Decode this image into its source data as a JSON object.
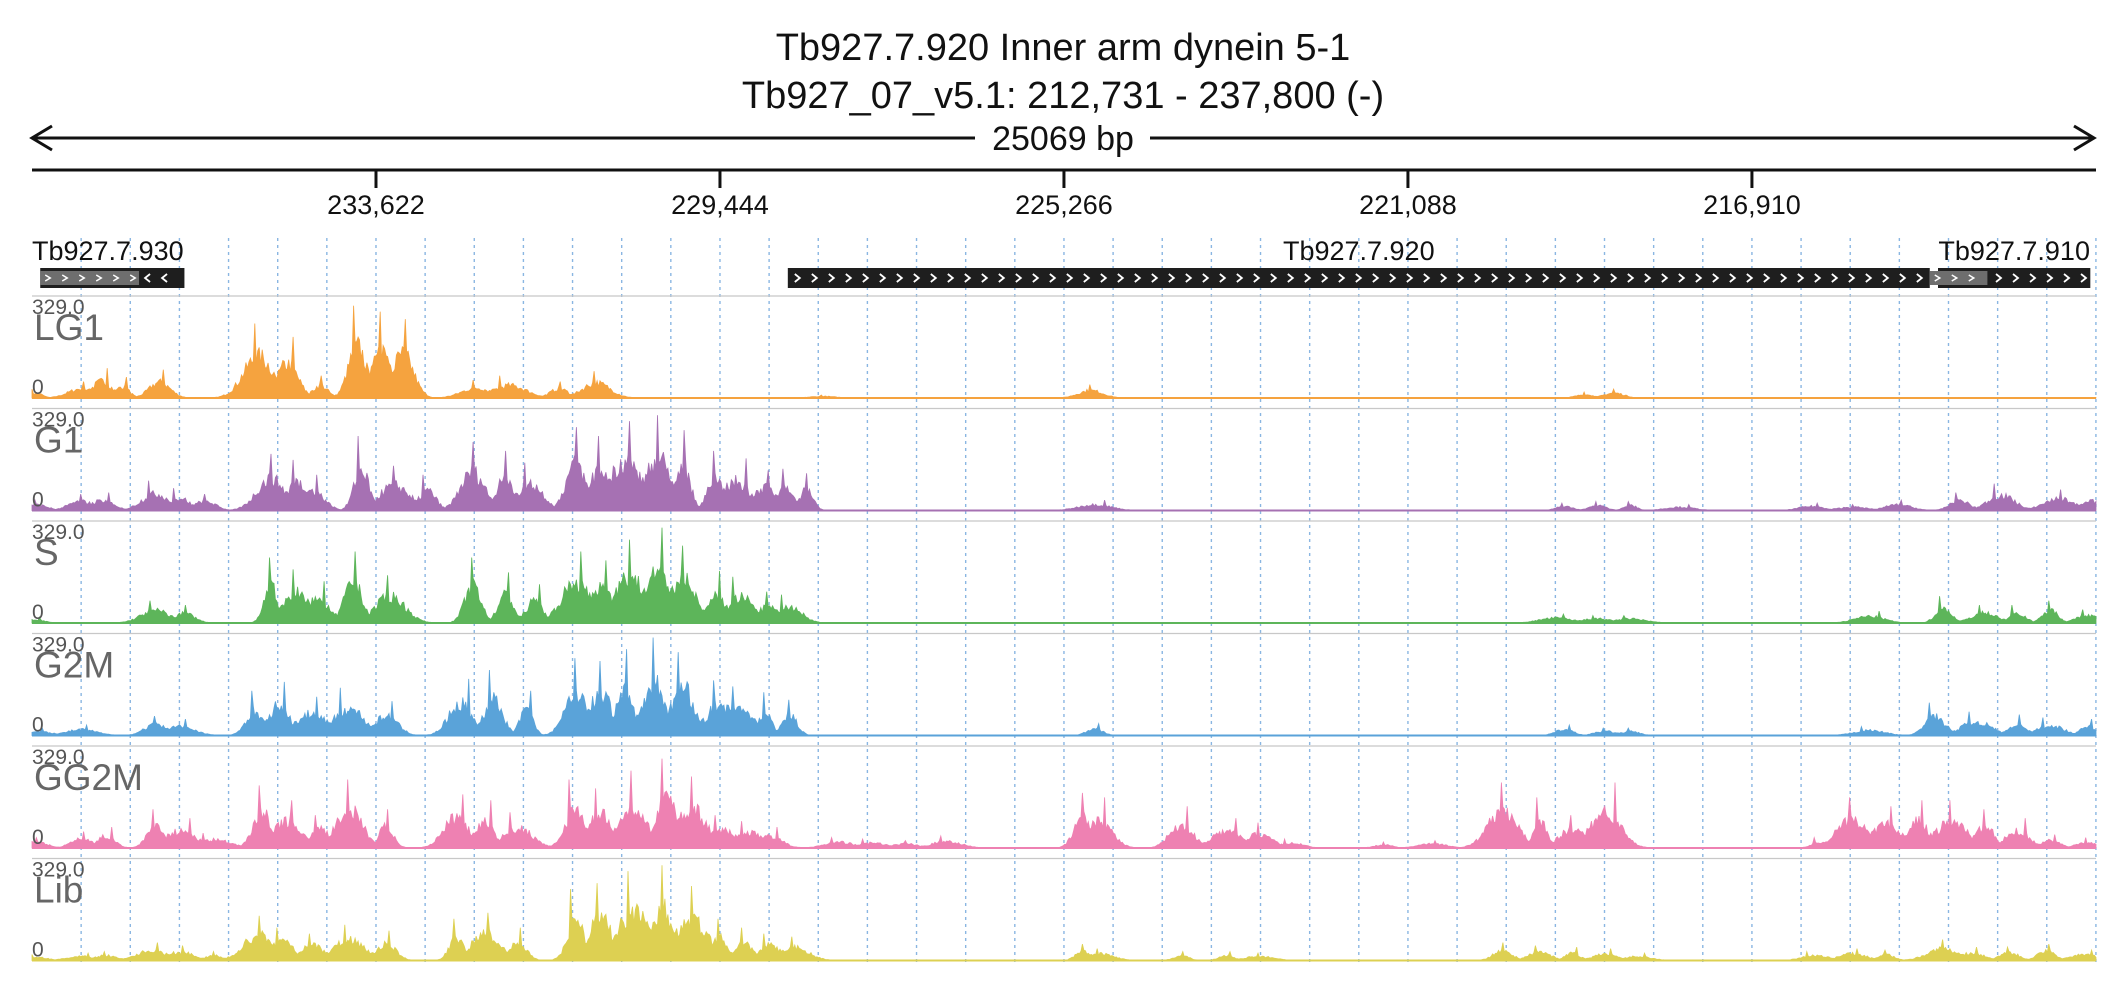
{
  "header": {
    "gene_title": "Tb927.7.920  Inner arm dynein 5-1",
    "locus": "Tb927_07_v5.1: 212,731 - 237,800 (-)",
    "span_label": "25069 bp"
  },
  "chart_data": {
    "type": "area",
    "title": "Tb927.7.920  Inner arm dynein 5-1",
    "xlabel": "",
    "ylabel": "",
    "x_range": [
      237800,
      212731
    ],
    "x_reversed": true,
    "x_ticks": [
      233622,
      229444,
      225266,
      221088,
      216910
    ],
    "x_tick_labels": [
      "233,622",
      "229,444",
      "225,266",
      "221,088",
      "216,910"
    ],
    "ylim": [
      0,
      329.0
    ],
    "y_max_label": "329.0",
    "y_min_label": "0",
    "genes": [
      {
        "name": "Tb927.7.930",
        "label": "Tb927.7.930",
        "start": 237700,
        "end": 235950,
        "strand": "-",
        "label_shown": true
      },
      {
        "name": "Tb927.7.920",
        "label": "Tb927.7.920",
        "start": 228620,
        "end": 214750,
        "strand": "+",
        "label_shown": true
      },
      {
        "name": "Tb927.7.910",
        "label": "Tb927.7.910",
        "start": 214650,
        "end": 212800,
        "strand": "+",
        "label_shown": true
      }
    ],
    "tracks": [
      {
        "name": "LG1",
        "color": "#F5A33F",
        "scale": 0.72,
        "peaks": [
          [
            237750,
            30
          ],
          [
            237200,
            55
          ],
          [
            236950,
            100
          ],
          [
            236700,
            70
          ],
          [
            236250,
            95
          ],
          [
            235050,
            250
          ],
          [
            234700,
            205
          ],
          [
            234300,
            75
          ],
          [
            233850,
            310
          ],
          [
            233550,
            290
          ],
          [
            233300,
            265
          ],
          [
            232400,
            60
          ],
          [
            232000,
            75
          ],
          [
            231400,
            55
          ],
          [
            230950,
            90
          ],
          [
            228200,
            10
          ],
          [
            224950,
            45
          ],
          [
            218950,
            20
          ],
          [
            218600,
            30
          ]
        ]
      },
      {
        "name": "G1",
        "color": "#A671B3",
        "scale": 0.86,
        "peaks": [
          [
            237750,
            35
          ],
          [
            237200,
            55
          ],
          [
            236950,
            60
          ],
          [
            236300,
            100
          ],
          [
            236000,
            75
          ],
          [
            235700,
            55
          ],
          [
            234900,
            190
          ],
          [
            234600,
            170
          ],
          [
            234400,
            120
          ],
          [
            233800,
            250
          ],
          [
            233400,
            150
          ],
          [
            233000,
            120
          ],
          [
            232450,
            230
          ],
          [
            232050,
            200
          ],
          [
            231750,
            160
          ],
          [
            231200,
            280
          ],
          [
            230900,
            250
          ],
          [
            230600,
            300
          ],
          [
            230200,
            320
          ],
          [
            229900,
            270
          ],
          [
            229500,
            200
          ],
          [
            229250,
            175
          ],
          [
            228900,
            135
          ],
          [
            228650,
            140
          ],
          [
            228400,
            125
          ],
          [
            224900,
            35
          ],
          [
            219200,
            25
          ],
          [
            218800,
            30
          ],
          [
            218400,
            30
          ],
          [
            217800,
            20
          ],
          [
            216200,
            25
          ],
          [
            215700,
            20
          ],
          [
            215150,
            35
          ],
          [
            214400,
            60
          ],
          [
            213900,
            90
          ],
          [
            213200,
            70
          ],
          [
            212800,
            55
          ]
        ]
      },
      {
        "name": "S",
        "color": "#5DB55A",
        "scale": 0.86,
        "peaks": [
          [
            237750,
            20
          ],
          [
            236300,
            75
          ],
          [
            235950,
            60
          ],
          [
            234900,
            220
          ],
          [
            234600,
            180
          ],
          [
            234350,
            140
          ],
          [
            233900,
            240
          ],
          [
            233450,
            160
          ],
          [
            232450,
            220
          ],
          [
            232050,
            170
          ],
          [
            231700,
            130
          ],
          [
            231200,
            240
          ],
          [
            230900,
            210
          ],
          [
            230550,
            280
          ],
          [
            230200,
            320
          ],
          [
            229900,
            260
          ],
          [
            229500,
            175
          ],
          [
            229200,
            155
          ],
          [
            228850,
            105
          ],
          [
            228600,
            95
          ],
          [
            219300,
            30
          ],
          [
            218800,
            25
          ],
          [
            218400,
            25
          ],
          [
            215500,
            40
          ],
          [
            214600,
            90
          ],
          [
            214100,
            60
          ],
          [
            213700,
            60
          ],
          [
            213300,
            75
          ],
          [
            212850,
            45
          ]
        ]
      },
      {
        "name": "G2M",
        "color": "#5AA3D9",
        "scale": 0.88,
        "peaks": [
          [
            237750,
            25
          ],
          [
            237200,
            35
          ],
          [
            236300,
            65
          ],
          [
            236000,
            55
          ],
          [
            235100,
            150
          ],
          [
            234800,
            180
          ],
          [
            234400,
            130
          ],
          [
            233950,
            160
          ],
          [
            233500,
            115
          ],
          [
            232600,
            190
          ],
          [
            232200,
            220
          ],
          [
            231800,
            150
          ],
          [
            231200,
            260
          ],
          [
            230900,
            250
          ],
          [
            230600,
            290
          ],
          [
            230250,
            330
          ],
          [
            229900,
            280
          ],
          [
            229450,
            185
          ],
          [
            229200,
            165
          ],
          [
            228900,
            145
          ],
          [
            228600,
            120
          ],
          [
            224900,
            40
          ],
          [
            219200,
            35
          ],
          [
            218700,
            25
          ],
          [
            218400,
            25
          ],
          [
            215500,
            30
          ],
          [
            214700,
            110
          ],
          [
            214200,
            80
          ],
          [
            213700,
            70
          ],
          [
            213300,
            60
          ],
          [
            212850,
            55
          ]
        ]
      },
      {
        "name": "GG2M",
        "color": "#EE81B2",
        "scale": 0.9,
        "peaks": [
          [
            237750,
            35
          ],
          [
            237200,
            55
          ],
          [
            236900,
            70
          ],
          [
            236300,
            130
          ],
          [
            236000,
            100
          ],
          [
            235600,
            50
          ],
          [
            235000,
            210
          ],
          [
            234700,
            160
          ],
          [
            234300,
            110
          ],
          [
            233950,
            230
          ],
          [
            233500,
            130
          ],
          [
            232650,
            180
          ],
          [
            232300,
            160
          ],
          [
            231900,
            120
          ],
          [
            231200,
            230
          ],
          [
            230900,
            200
          ],
          [
            230500,
            260
          ],
          [
            230100,
            300
          ],
          [
            229800,
            240
          ],
          [
            229450,
            110
          ],
          [
            229100,
            90
          ],
          [
            228850,
            70
          ],
          [
            228000,
            35
          ],
          [
            227600,
            30
          ],
          [
            227200,
            25
          ],
          [
            226700,
            40
          ],
          [
            225050,
            185
          ],
          [
            224850,
            170
          ],
          [
            223850,
            140
          ],
          [
            223300,
            100
          ],
          [
            222900,
            85
          ],
          [
            222500,
            30
          ],
          [
            221400,
            20
          ],
          [
            220800,
            25
          ],
          [
            219950,
            220
          ],
          [
            219500,
            170
          ],
          [
            219100,
            110
          ],
          [
            218700,
            220
          ],
          [
            216100,
            35
          ],
          [
            215700,
            170
          ],
          [
            215300,
            140
          ],
          [
            214900,
            160
          ],
          [
            214500,
            160
          ],
          [
            214100,
            130
          ],
          [
            213700,
            100
          ],
          [
            213300,
            45
          ],
          [
            212850,
            35
          ]
        ]
      },
      {
        "name": "Lib",
        "color": "#DDD052",
        "scale": 0.9,
        "peaks": [
          [
            237750,
            20
          ],
          [
            237200,
            25
          ],
          [
            236900,
            30
          ],
          [
            236350,
            60
          ],
          [
            236000,
            50
          ],
          [
            235600,
            30
          ],
          [
            235050,
            150
          ],
          [
            234750,
            110
          ],
          [
            234400,
            90
          ],
          [
            233950,
            120
          ],
          [
            233500,
            100
          ],
          [
            232650,
            140
          ],
          [
            232300,
            160
          ],
          [
            231900,
            110
          ],
          [
            231200,
            240
          ],
          [
            230900,
            260
          ],
          [
            230500,
            300
          ],
          [
            230150,
            320
          ],
          [
            229800,
            250
          ],
          [
            229450,
            140
          ],
          [
            229150,
            110
          ],
          [
            228850,
            90
          ],
          [
            228550,
            80
          ],
          [
            225050,
            55
          ],
          [
            224850,
            40
          ],
          [
            223850,
            30
          ],
          [
            223300,
            30
          ],
          [
            222900,
            25
          ],
          [
            219950,
            60
          ],
          [
            219500,
            50
          ],
          [
            219100,
            45
          ],
          [
            218700,
            40
          ],
          [
            218300,
            25
          ],
          [
            216150,
            30
          ],
          [
            215700,
            40
          ],
          [
            215300,
            35
          ],
          [
            214600,
            70
          ],
          [
            214250,
            45
          ],
          [
            213800,
            45
          ],
          [
            213350,
            55
          ],
          [
            212900,
            35
          ]
        ]
      }
    ]
  }
}
